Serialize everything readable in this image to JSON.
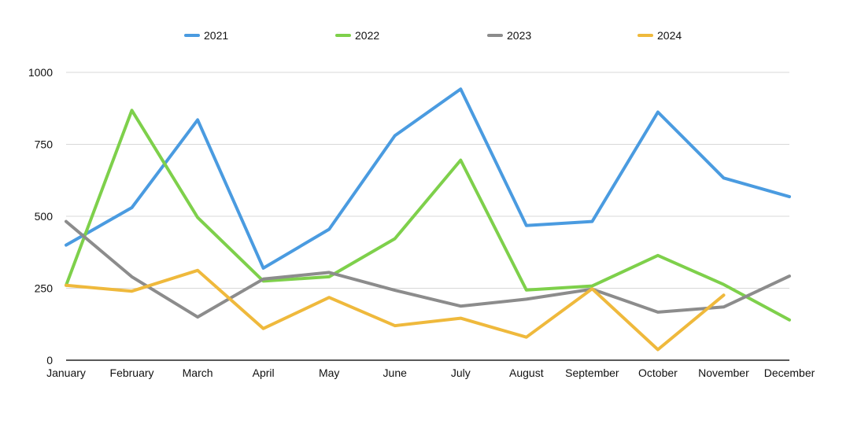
{
  "chart_data": {
    "type": "line",
    "categories": [
      "January",
      "February",
      "March",
      "April",
      "May",
      "June",
      "July",
      "August",
      "September",
      "October",
      "November",
      "December"
    ],
    "ylim": [
      0,
      1000
    ],
    "yticks": [
      "0",
      "250",
      "500",
      "750",
      "1000"
    ],
    "grid": true,
    "legend_position": "top-center",
    "series": [
      {
        "name": "2021",
        "color": "#4a9be0",
        "values": [
          400,
          530,
          835,
          320,
          455,
          780,
          942,
          468,
          482,
          862,
          633,
          568
        ]
      },
      {
        "name": "2022",
        "color": "#7ed04b",
        "values": [
          260,
          868,
          496,
          275,
          290,
          422,
          695,
          244,
          258,
          364,
          263,
          140
        ]
      },
      {
        "name": "2023",
        "color": "#8c8c8c",
        "values": [
          482,
          290,
          150,
          282,
          305,
          243,
          188,
          212,
          247,
          167,
          185,
          292
        ]
      },
      {
        "name": "2024",
        "color": "#efb93c",
        "values": [
          260,
          240,
          312,
          110,
          218,
          120,
          146,
          80,
          248,
          37,
          226,
          null
        ]
      }
    ]
  }
}
